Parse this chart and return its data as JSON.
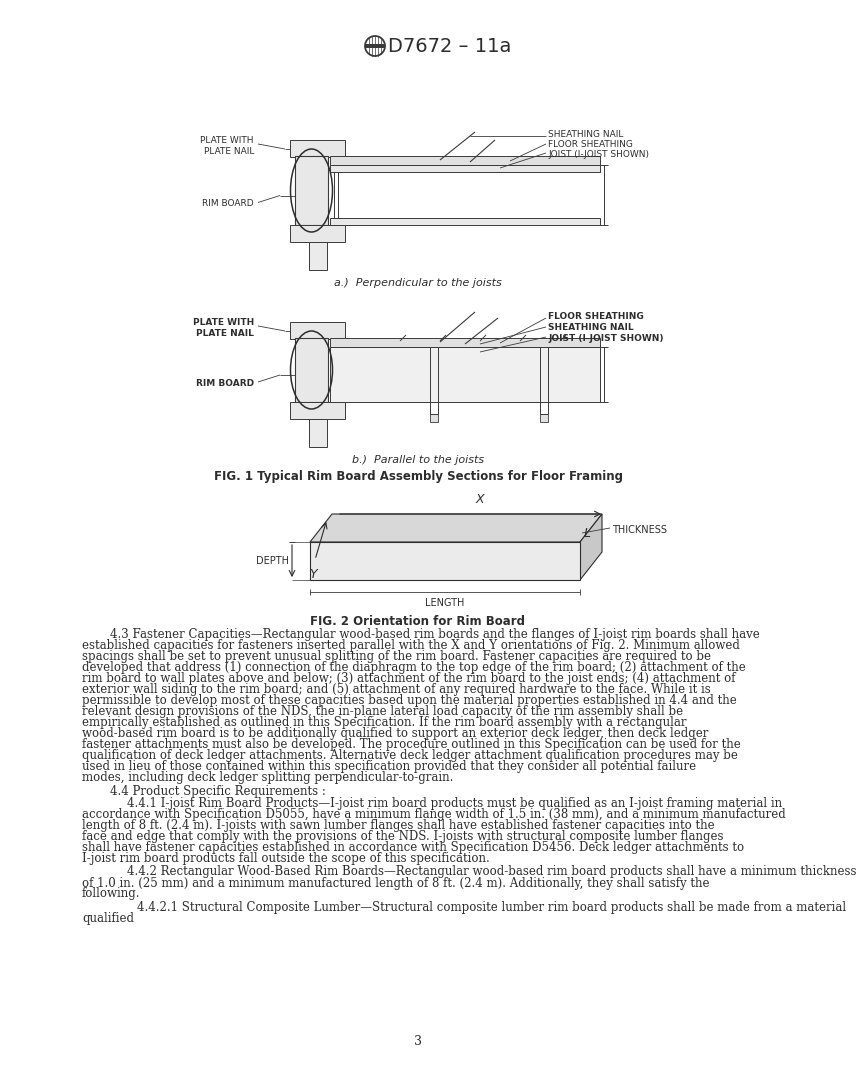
{
  "title": "D7672 – 11a",
  "bg_color": "#ffffff",
  "text_color": "#2d2d2d",
  "page_number": "3",
  "fig1_caption": "FIG. 1 Typical Rim Board Assembly Sections for Floor Framing",
  "fig1a_caption": "a.)  Perpendicular to the joists",
  "fig1b_caption": "b.)  Parallel to the joists",
  "fig2_caption": "FIG. 2 Orientation for Rim Board",
  "body_text_43": "4.3 Fastener Capacities—Rectangular wood-based rim boards and the flanges of I-joist rim boards shall have established capacities for fasteners inserted parallel with the X and Y orientations of Fig. 2. Minimum allowed spacings shall be set to prevent unusual splitting of the rim board. Fastener capacities are required to be developed that address (1) connection of the diaphragm to the top edge of the rim board; (2) attachment of the rim board to wall plates above and below; (3) attachment of the rim board to the joist ends; (4) attachment of exterior wall siding to the rim board; and (5) attachment of any required hardware to the face. While it is permissible to develop most of these capacities based upon the material properties established in 4.4 and the relevant design provisions of the NDS, the in-plane lateral load capacity of the rim assembly shall be empirically established as outlined in this Specification. If the rim board assembly with a rectangular wood-based rim board is to be additionally qualified to support an exterior deck ledger, then deck ledger fastener attachments must also be developed. The procedure outlined in this Specification can be used for the qualification of deck ledger attachments. Alternative deck ledger attachment qualification procedures may be used in lieu of those contained within this specification provided that they consider all potential failure modes, including deck ledger splitting perpendicular-to-grain.",
  "body_text_44": "4.4 Product Specific Requirements :",
  "body_text_441": "4.4.1 I-joist Rim Board Products—I-joist rim board products must be qualified as an I-joist framing material in accordance with Specification D5055, have a minimum flange width of 1.5 in. (38 mm), and a minimum manufactured length of 8 ft. (2.4 m). I-joists with sawn lumber flanges shall have established fastener capacities into the face and edge that comply with the provisions of the NDS. I-joists with structural composite lumber flanges shall have fastener capacities established in accordance with Specification D5456. Deck ledger attachments to I-joist rim board products fall outside the scope of this specification.",
  "body_text_442": "4.4.2 Rectangular Wood-Based Rim Boards—Rectangular wood-based rim board products shall have a minimum thickness of 1.0 in. (25 mm) and a minimum manufactured length of 8 ft. (2.4 m). Additionally, they shall satisfy the following.",
  "body_text_4421": "4.4.2.1 Structural Composite Lumber—Structural composite lumber rim board products shall be made from a material qualified"
}
